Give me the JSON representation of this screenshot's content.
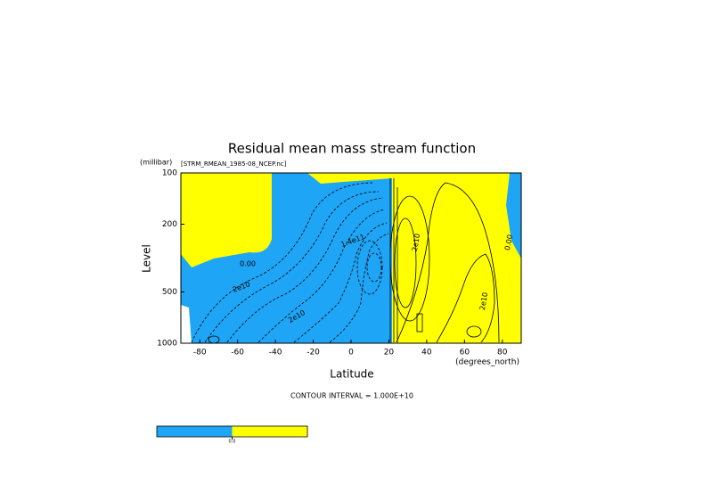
{
  "chart_data": {
    "type": "contour",
    "title": "Residual mean mass stream function",
    "subtitle": "[STRM_RMEAN_1985-08_NCEP.nc]",
    "y_unit": "(millibar)",
    "ylabel": "Level",
    "xlabel": "Latitude",
    "x_unit": "(degrees_north)",
    "note": "CONTOUR INTERVAL = 1.000E+10",
    "xlim": [
      -90,
      90
    ],
    "xticks": [
      -80,
      -60,
      -40,
      -20,
      0,
      20,
      40,
      60,
      80
    ],
    "ylim": [
      1000,
      100
    ],
    "yticks": [
      100,
      200,
      500,
      1000
    ],
    "log_y": true,
    "negative_color": "#1ea5f5",
    "positive_color": "#ffff00",
    "contour_labels": [
      "0.00",
      "2e10",
      "2e10",
      "1.4e11",
      "2e10",
      "2e10",
      "0.00"
    ],
    "colorbar_ticks": [
      {
        "value": 0,
        "label": "0.0"
      }
    ]
  }
}
